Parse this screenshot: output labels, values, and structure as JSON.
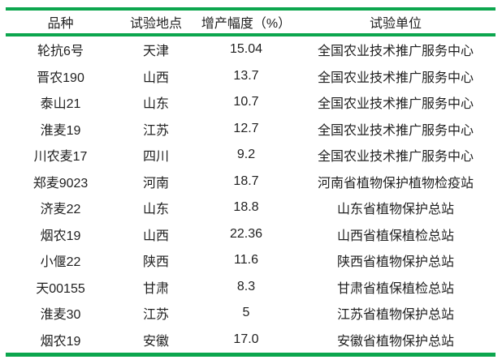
{
  "colors": {
    "rule_green": "#0ca64e",
    "text": "#1f1f1f",
    "background": "#ffffff"
  },
  "table": {
    "columns": [
      "品种",
      "试验地点",
      "增产幅度（%）",
      "试验单位"
    ],
    "rows": [
      [
        "轮抗6号",
        "天津",
        "15.04",
        "全国农业技术推广服务中心"
      ],
      [
        "晋农190",
        "山西",
        "13.7",
        "全国农业技术推广服务中心"
      ],
      [
        "泰山21",
        "山东",
        "10.7",
        "全国农业技术推广服务中心"
      ],
      [
        "淮麦19",
        "江苏",
        "12.7",
        "全国农业技术推广服务中心"
      ],
      [
        "川农麦17",
        "四川",
        "9.2",
        "全国农业技术推广服务中心"
      ],
      [
        "郑麦9023",
        "河南",
        "18.7",
        "河南省植物保护植物检疫站"
      ],
      [
        "济麦22",
        "山东",
        "18.8",
        "山东省植物保护总站"
      ],
      [
        "烟农19",
        "山西",
        "22.36",
        "山西省植保植检总站"
      ],
      [
        "小偃22",
        "陕西",
        "11.6",
        "陕西省植物保护总站"
      ],
      [
        "天00155",
        "甘肃",
        "8.3",
        "甘肃省植保植检总站"
      ],
      [
        "淮麦30",
        "江苏",
        "5",
        "江苏省植物保护总站"
      ],
      [
        "烟农19",
        "安徽",
        "17.0",
        "安徽省植物保护总站"
      ]
    ]
  }
}
